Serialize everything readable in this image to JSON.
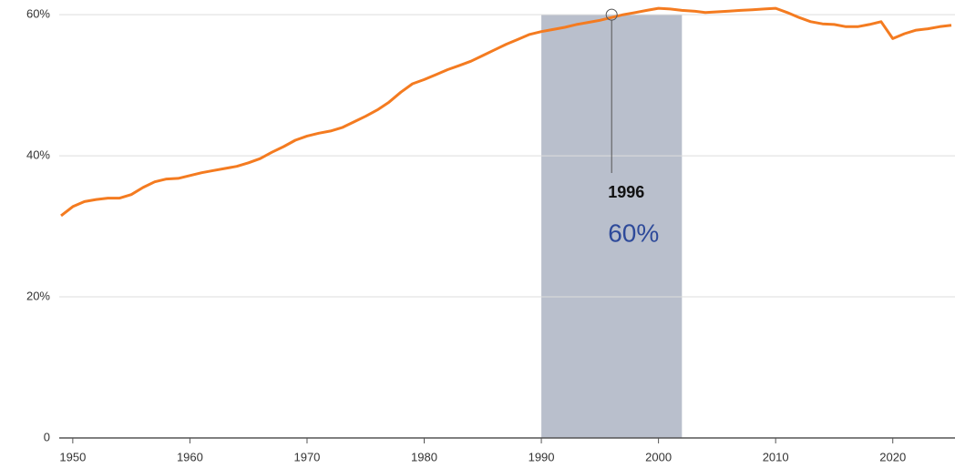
{
  "chart_data": {
    "type": "line",
    "x": [
      1949,
      1950,
      1951,
      1952,
      1953,
      1954,
      1955,
      1956,
      1957,
      1958,
      1959,
      1960,
      1961,
      1962,
      1963,
      1964,
      1965,
      1966,
      1967,
      1968,
      1969,
      1970,
      1971,
      1972,
      1973,
      1974,
      1975,
      1976,
      1977,
      1978,
      1979,
      1980,
      1981,
      1982,
      1983,
      1984,
      1985,
      1986,
      1987,
      1988,
      1989,
      1990,
      1991,
      1992,
      1993,
      1994,
      1995,
      1996,
      1997,
      1998,
      1999,
      2000,
      2001,
      2002,
      2003,
      2004,
      2005,
      2006,
      2007,
      2008,
      2009,
      2010,
      2011,
      2012,
      2013,
      2014,
      2015,
      2016,
      2017,
      2018,
      2019,
      2020,
      2021,
      2022,
      2023,
      2024,
      2025
    ],
    "values": [
      31.5,
      32.8,
      33.5,
      33.8,
      34.0,
      34.0,
      34.5,
      35.5,
      36.3,
      36.7,
      36.8,
      37.2,
      37.6,
      37.9,
      38.2,
      38.5,
      39.0,
      39.6,
      40.5,
      41.3,
      42.2,
      42.8,
      43.2,
      43.5,
      44.0,
      44.8,
      45.6,
      46.5,
      47.6,
      49.0,
      50.2,
      50.8,
      51.5,
      52.2,
      52.8,
      53.4,
      54.2,
      55.0,
      55.8,
      56.5,
      57.2,
      57.6,
      57.9,
      58.2,
      58.6,
      58.9,
      59.2,
      59.6,
      60.0,
      60.3,
      60.6,
      60.9,
      60.8,
      60.6,
      60.5,
      60.3,
      60.4,
      60.5,
      60.6,
      60.7,
      60.8,
      60.9,
      60.3,
      59.6,
      59.0,
      58.7,
      58.6,
      58.3,
      58.3,
      58.6,
      59.0,
      56.6,
      57.3,
      57.8,
      58.0,
      58.3,
      58.5
    ],
    "color": "#f47b20",
    "xlim": [
      1949,
      2025
    ],
    "ylim": [
      0,
      62
    ],
    "xticks": [
      1950,
      1960,
      1970,
      1980,
      1990,
      2000,
      2010,
      2020
    ],
    "yticks": [
      0,
      {
        "value": 20,
        "label": "20%"
      },
      {
        "value": 40,
        "label": "40%"
      },
      {
        "value": 60,
        "label": "60%"
      }
    ],
    "grid": true,
    "highlight": {
      "x_range": [
        1990,
        2002
      ],
      "color": "#b9bfcc"
    },
    "annotation": {
      "x": 1996,
      "y": {
        "value": 60,
        "label": "60%"
      },
      "color": "#2e4a9a"
    }
  }
}
